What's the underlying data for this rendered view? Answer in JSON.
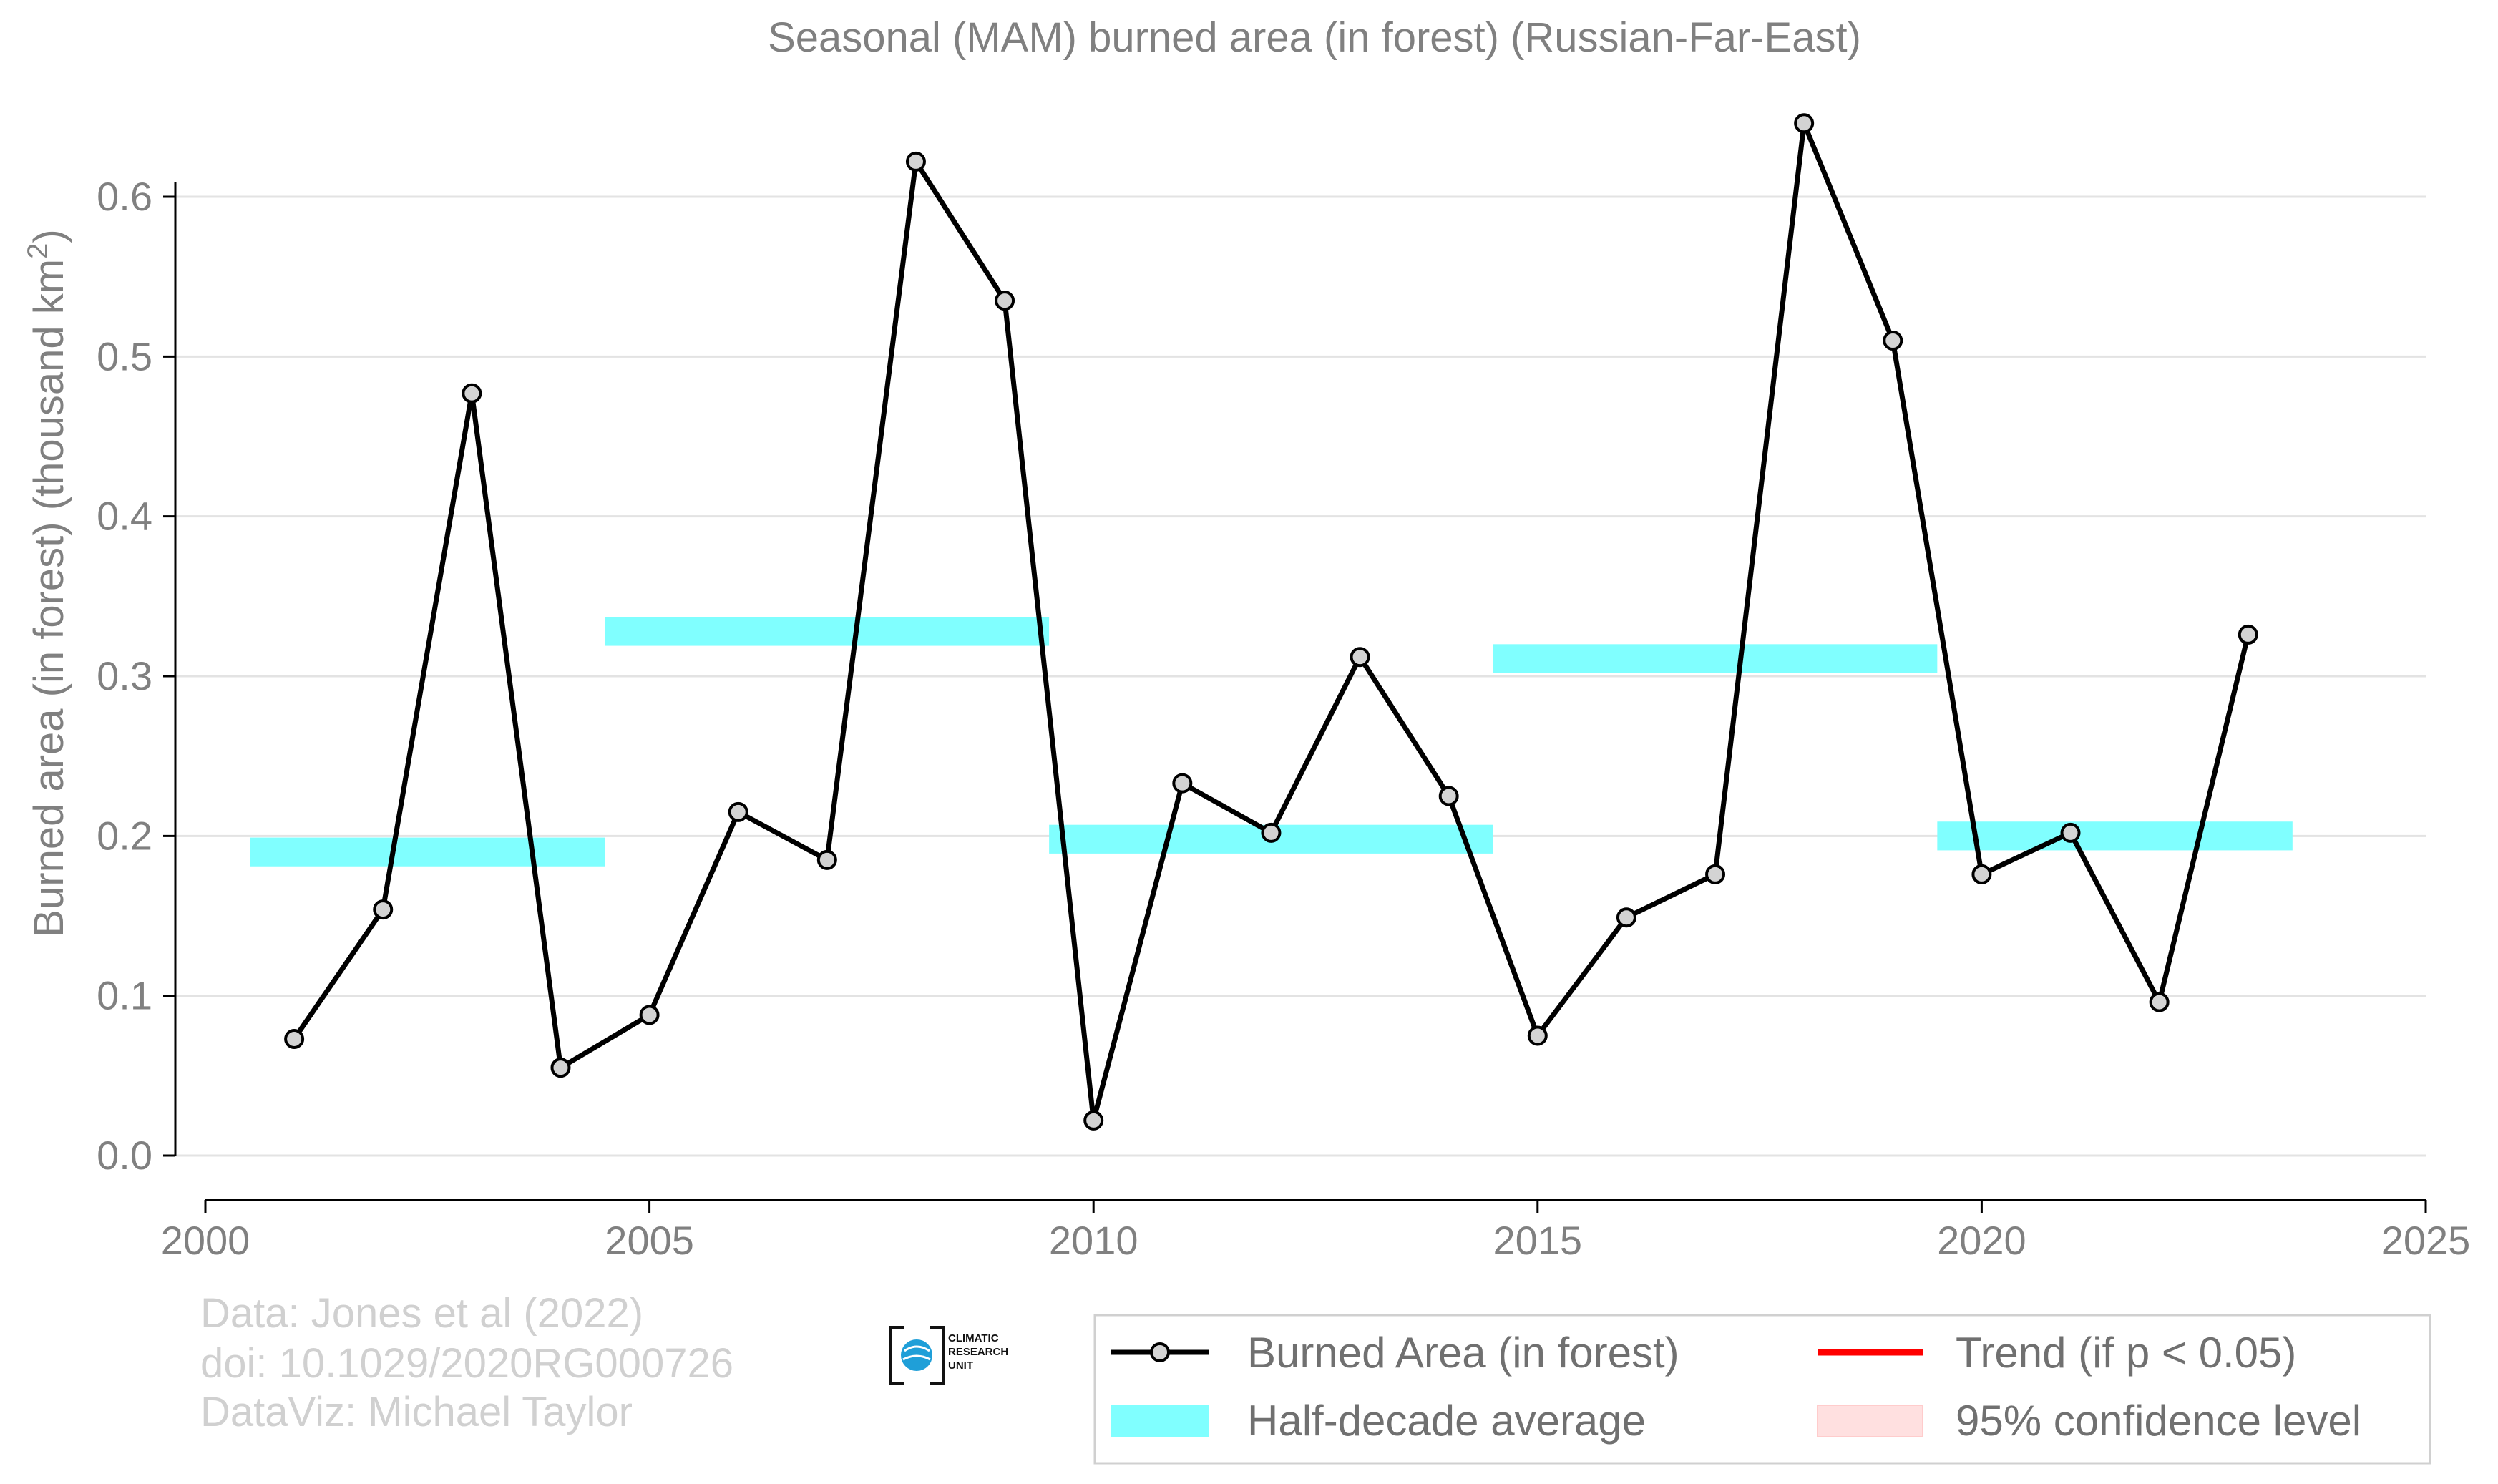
{
  "chart_data": {
    "type": "line",
    "title": "Seasonal (MAM) burned area (in forest) (Russian-Far-East)",
    "ylabel_main": "Burned area (in forest) (thousand km",
    "ylabel_sup": "2",
    "ylabel_close": ")",
    "xlim": [
      2000,
      2025
    ],
    "ylim": [
      0.0,
      0.6
    ],
    "x_ticks": [
      "2000",
      "2005",
      "2010",
      "2015",
      "2020",
      "2025"
    ],
    "y_ticks": [
      "0.0",
      "0.1",
      "0.2",
      "0.3",
      "0.4",
      "0.5",
      "0.6"
    ],
    "grid": "horizontal",
    "series": [
      {
        "name": "Burned Area (in forest)",
        "color": "#000000",
        "marker_fill": "#d3d3d3",
        "x": [
          2001,
          2002,
          2003,
          2004,
          2005,
          2006,
          2007,
          2008,
          2009,
          2010,
          2011,
          2012,
          2013,
          2014,
          2015,
          2016,
          2017,
          2018,
          2019,
          2020,
          2021,
          2022,
          2023
        ],
        "y": [
          0.073,
          0.154,
          0.477,
          0.055,
          0.088,
          0.215,
          0.185,
          0.622,
          0.535,
          0.022,
          0.233,
          0.202,
          0.312,
          0.225,
          0.075,
          0.149,
          0.176,
          0.646,
          0.51,
          0.176,
          0.202,
          0.096,
          0.326
        ]
      }
    ],
    "half_decade_averages": {
      "color": "#80ffff",
      "segments": [
        {
          "x0": 2000.5,
          "x1": 2004.5,
          "y": 0.19
        },
        {
          "x0": 2004.5,
          "x1": 2009.5,
          "y": 0.328
        },
        {
          "x0": 2009.5,
          "x1": 2014.5,
          "y": 0.198
        },
        {
          "x0": 2014.5,
          "x1": 2019.5,
          "y": 0.311
        },
        {
          "x0": 2019.5,
          "x1": 2023.5,
          "y": 0.2
        }
      ]
    },
    "legend": {
      "placement": "bottom-right",
      "items": [
        {
          "label": "Burned Area (in forest)",
          "swatch": "line-marker",
          "color": "#000000"
        },
        {
          "label": "Trend (if p < 0.05)",
          "swatch": "line",
          "color": "#ff0000"
        },
        {
          "label": "Half-decade average",
          "swatch": "band",
          "color": "#80ffff"
        },
        {
          "label": "95% confidence level",
          "swatch": "band",
          "color": "#ffe0e0"
        }
      ]
    }
  },
  "credits": {
    "line1": "Data: Jones et al (2022)",
    "line2": "doi: 10.1029/2020RG000726",
    "line3": "DataViz: Michael Taylor"
  },
  "logo": {
    "line1": "CLIMATIC",
    "line2": "RESEARCH",
    "line3": "UNIT"
  }
}
